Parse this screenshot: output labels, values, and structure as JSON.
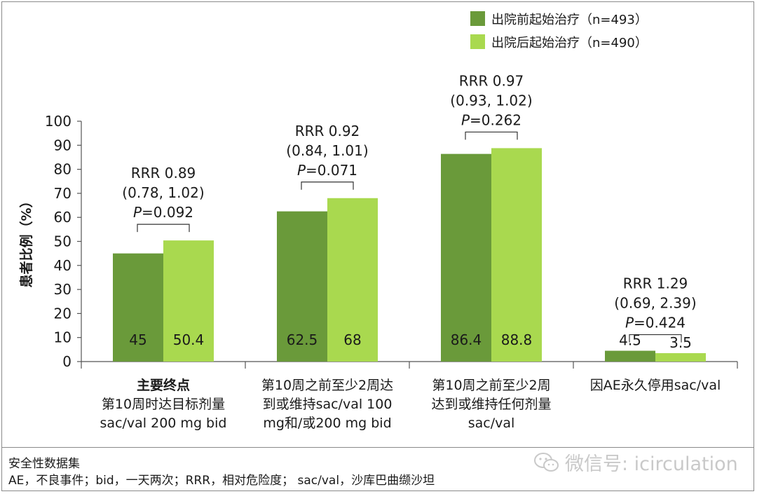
{
  "chart_data": {
    "type": "bar",
    "ylabel": "患者比例（%）",
    "ylim": [
      0,
      100
    ],
    "yticks": [
      0,
      10,
      20,
      30,
      40,
      50,
      60,
      70,
      80,
      90,
      100
    ],
    "legend_position": "top-right",
    "series": [
      {
        "name": "出院前起始治疗（n=493）",
        "color": "#6a9a3a",
        "values": [
          45,
          62.5,
          86.4,
          4.5
        ]
      },
      {
        "name": "出院后起始治疗（n=490）",
        "color": "#a9d94f",
        "values": [
          50.4,
          68,
          88.8,
          3.5
        ]
      }
    ],
    "categories": [
      {
        "lines": [
          "主要终点",
          "第10周时达目标剂量",
          "sac/val 200 mg bid"
        ],
        "bold_first": true
      },
      {
        "lines": [
          "第10周之前至少2周达",
          "到或维持sac/val 100",
          "mg和/或200 mg bid"
        ],
        "bold_first": false
      },
      {
        "lines": [
          "第10周之前至少2周",
          "达到或维持任何剂量",
          "sac/val"
        ],
        "bold_first": false
      },
      {
        "lines": [
          "因AE永久停用sac/val"
        ],
        "bold_first": false
      }
    ],
    "data_labels": [
      [
        "45",
        "50.4"
      ],
      [
        "62.5",
        "68"
      ],
      [
        "86.4",
        "88.8"
      ],
      [
        "4.5",
        "3.5"
      ]
    ],
    "annotations": [
      {
        "rrr": "RRR 0.89",
        "ci": "(0.78, 1.02)",
        "p_letter": "P",
        "p_rest": "=0.092"
      },
      {
        "rrr": "RRR 0.92",
        "ci": "(0.84, 1.01)",
        "p_letter": "P",
        "p_rest": "=0.071"
      },
      {
        "rrr": "RRR 0.97",
        "ci": "(0.93, 1.02)",
        "p_letter": "P",
        "p_rest": "=0.262"
      },
      {
        "rrr": "RRR 1.29",
        "ci": "(0.69, 2.39)",
        "p_letter": "P",
        "p_rest": "=0.424"
      }
    ]
  },
  "footnotes": {
    "line1": "安全性数据集",
    "line2": "AE，不良事件；bid，一天两次；RRR，相对危险度；  sac/val，沙库巴曲缬沙坦"
  },
  "watermark": {
    "text": "微信号: icirculation",
    "icon": "wechat-icon"
  }
}
